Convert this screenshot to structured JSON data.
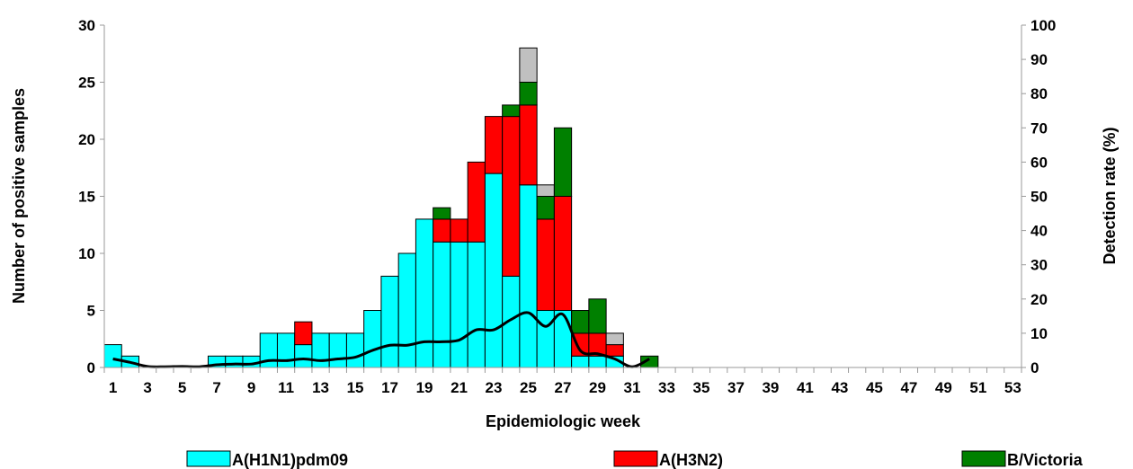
{
  "chart_data": {
    "type": "bar",
    "stacked": true,
    "xlabel": "Epidemiologic week",
    "ylabel": "Number of positive samples",
    "y2label": "Detection rate (%)",
    "ylim": [
      0,
      30
    ],
    "y2lim": [
      0,
      100
    ],
    "yticks": [
      0,
      5,
      10,
      15,
      20,
      25,
      30
    ],
    "y2ticks": [
      0,
      10,
      20,
      30,
      40,
      50,
      60,
      70,
      80,
      90,
      100
    ],
    "x": [
      1,
      2,
      3,
      4,
      5,
      6,
      7,
      8,
      9,
      10,
      11,
      12,
      13,
      14,
      15,
      16,
      17,
      18,
      19,
      20,
      21,
      22,
      23,
      24,
      25,
      26,
      27,
      28,
      29,
      30,
      31,
      32,
      33,
      34,
      35,
      36,
      37,
      38,
      39,
      40,
      41,
      42,
      43,
      44,
      45,
      46,
      47,
      48,
      49,
      50,
      51,
      52,
      53
    ],
    "xtick_labels": [
      "1",
      "3",
      "5",
      "7",
      "9",
      "11",
      "13",
      "15",
      "17",
      "19",
      "21",
      "23",
      "25",
      "27",
      "29",
      "31",
      "33",
      "35",
      "37",
      "39",
      "41",
      "43",
      "45",
      "47",
      "49",
      "51",
      "53"
    ],
    "grid": false,
    "legend_position": "bottom",
    "series": [
      {
        "name": "A(H1N1)pdm09",
        "color": "#00ffff",
        "values": [
          2,
          1,
          0,
          0,
          0,
          0,
          1,
          1,
          1,
          3,
          3,
          2,
          3,
          3,
          3,
          5,
          8,
          10,
          13,
          11,
          11,
          11,
          17,
          8,
          16,
          5,
          5,
          1,
          1,
          1,
          0,
          0,
          0,
          0,
          0,
          0,
          0,
          0,
          0,
          0,
          0,
          0,
          0,
          0,
          0,
          0,
          0,
          0,
          0,
          0,
          0,
          0,
          0
        ]
      },
      {
        "name": "A(H3N2)",
        "color": "#ff0000",
        "values": [
          0,
          0,
          0,
          0,
          0,
          0,
          0,
          0,
          0,
          0,
          0,
          2,
          0,
          0,
          0,
          0,
          0,
          0,
          0,
          2,
          2,
          7,
          5,
          14,
          7,
          8,
          10,
          2,
          2,
          1,
          0,
          0,
          0,
          0,
          0,
          0,
          0,
          0,
          0,
          0,
          0,
          0,
          0,
          0,
          0,
          0,
          0,
          0,
          0,
          0,
          0,
          0,
          0
        ]
      },
      {
        "name": "B/Victoria",
        "color": "#008000",
        "values": [
          0,
          0,
          0,
          0,
          0,
          0,
          0,
          0,
          0,
          0,
          0,
          0,
          0,
          0,
          0,
          0,
          0,
          0,
          0,
          1,
          0,
          0,
          0,
          1,
          2,
          2,
          6,
          2,
          3,
          0,
          0,
          1,
          0,
          0,
          0,
          0,
          0,
          0,
          0,
          0,
          0,
          0,
          0,
          0,
          0,
          0,
          0,
          0,
          0,
          0,
          0,
          0,
          0
        ]
      },
      {
        "color": "#c0c0c0",
        "values": [
          0,
          0,
          0,
          0,
          0,
          0,
          0,
          0,
          0,
          0,
          0,
          0,
          0,
          0,
          0,
          0,
          0,
          0,
          0,
          0,
          0,
          0,
          0,
          0,
          3,
          1,
          0,
          0,
          0,
          1,
          0,
          0,
          0,
          0,
          0,
          0,
          0,
          0,
          0,
          0,
          0,
          0,
          0,
          0,
          0,
          0,
          0,
          0,
          0,
          0,
          0,
          0,
          0
        ]
      }
    ],
    "line": {
      "axis": "y2",
      "color": "#000000",
      "values": [
        2.5,
        1.5,
        0.3,
        0.2,
        0.3,
        0.2,
        0.8,
        1,
        1,
        2,
        2,
        2.5,
        2,
        2.5,
        3,
        5,
        6.5,
        6.5,
        7.5,
        7.5,
        8,
        11,
        11,
        14,
        16,
        12,
        15.5,
        5,
        4,
        2.5,
        0.2,
        2.5
      ]
    }
  }
}
